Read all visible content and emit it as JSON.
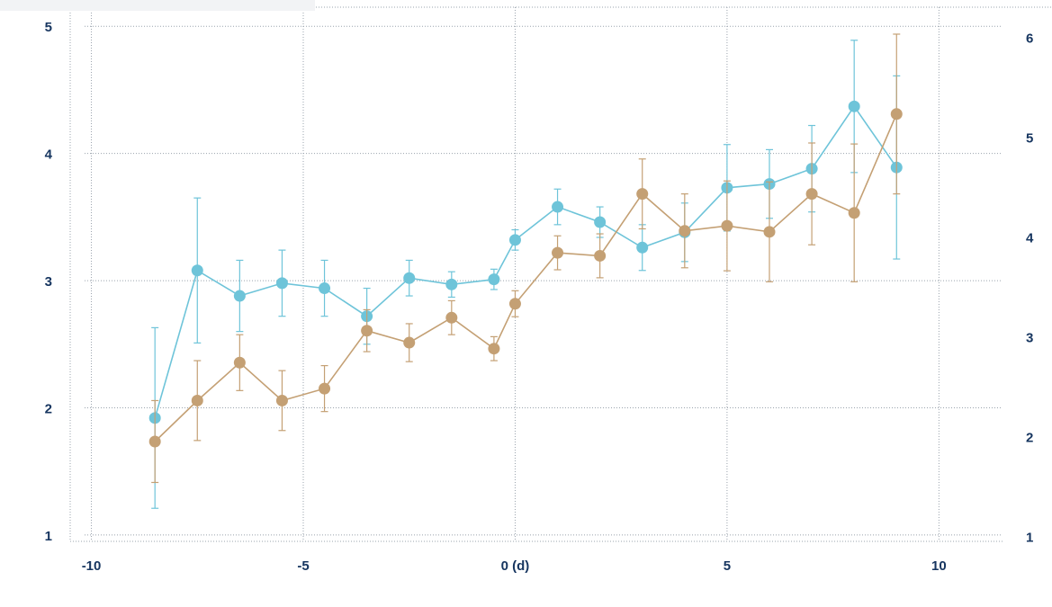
{
  "chart_data": {
    "type": "line",
    "x_axis": {
      "ticks": [
        -10,
        -5,
        0,
        5,
        10
      ],
      "tick_labels": [
        "-10",
        "-5",
        "0 (d)",
        "5",
        "10"
      ],
      "range": [
        -10.5,
        11.5
      ]
    },
    "y_axis_left": {
      "ticks": [
        1,
        2,
        3,
        4,
        5
      ],
      "range": [
        0.95,
        5.15
      ]
    },
    "y_axis_right": {
      "ticks": [
        1,
        2,
        3,
        4,
        5,
        6
      ],
      "range": [
        0.95,
        6.3
      ]
    },
    "grid": true,
    "series": [
      {
        "axis": "left",
        "color": "#6ec4d9",
        "points": [
          {
            "x": -8.5,
            "y": 1.92,
            "err": 0.71
          },
          {
            "x": -7.5,
            "y": 3.08,
            "err": 0.57
          },
          {
            "x": -6.5,
            "y": 2.88,
            "err": 0.28
          },
          {
            "x": -5.5,
            "y": 2.98,
            "err": 0.26
          },
          {
            "x": -4.5,
            "y": 2.94,
            "err": 0.22
          },
          {
            "x": -3.5,
            "y": 2.72,
            "err": 0.22
          },
          {
            "x": -2.5,
            "y": 3.02,
            "err": 0.14
          },
          {
            "x": -1.5,
            "y": 2.97,
            "err": 0.1
          },
          {
            "x": -0.5,
            "y": 3.01,
            "err": 0.08
          },
          {
            "x": 0.0,
            "y": 3.32,
            "err": 0.08
          },
          {
            "x": 1.0,
            "y": 3.58,
            "err": 0.14
          },
          {
            "x": 2.0,
            "y": 3.46,
            "err": 0.12
          },
          {
            "x": 3.0,
            "y": 3.26,
            "err": 0.18
          },
          {
            "x": 4.0,
            "y": 3.38,
            "err": 0.23
          },
          {
            "x": 5.0,
            "y": 3.73,
            "err": 0.34
          },
          {
            "x": 6.0,
            "y": 3.76,
            "err": 0.27
          },
          {
            "x": 7.0,
            "y": 3.88,
            "err": 0.34
          },
          {
            "x": 8.0,
            "y": 4.37,
            "err": 0.52
          },
          {
            "x": 9.0,
            "y": 3.89,
            "err": 0.72
          }
        ]
      },
      {
        "axis": "right",
        "color": "#c4a074",
        "points": [
          {
            "x": -8.5,
            "y": 1.95,
            "err": 0.41
          },
          {
            "x": -7.5,
            "y": 2.36,
            "err": 0.4
          },
          {
            "x": -6.5,
            "y": 2.74,
            "err": 0.28
          },
          {
            "x": -5.5,
            "y": 2.36,
            "err": 0.3
          },
          {
            "x": -4.5,
            "y": 2.48,
            "err": 0.23
          },
          {
            "x": -3.5,
            "y": 3.06,
            "err": 0.21
          },
          {
            "x": -2.5,
            "y": 2.94,
            "err": 0.19
          },
          {
            "x": -1.5,
            "y": 3.19,
            "err": 0.17
          },
          {
            "x": -0.5,
            "y": 2.88,
            "err": 0.12
          },
          {
            "x": 0.0,
            "y": 3.33,
            "err": 0.13
          },
          {
            "x": 1.0,
            "y": 3.84,
            "err": 0.17
          },
          {
            "x": 2.0,
            "y": 3.81,
            "err": 0.22
          },
          {
            "x": 3.0,
            "y": 4.43,
            "err": 0.35
          },
          {
            "x": 4.0,
            "y": 4.06,
            "err": 0.37
          },
          {
            "x": 5.0,
            "y": 4.11,
            "err": 0.45
          },
          {
            "x": 6.0,
            "y": 4.05,
            "err": 0.5
          },
          {
            "x": 7.0,
            "y": 4.43,
            "err": 0.51
          },
          {
            "x": 8.0,
            "y": 4.24,
            "err": 0.69
          },
          {
            "x": 9.0,
            "y": 5.23,
            "err": 0.8
          }
        ]
      }
    ]
  }
}
